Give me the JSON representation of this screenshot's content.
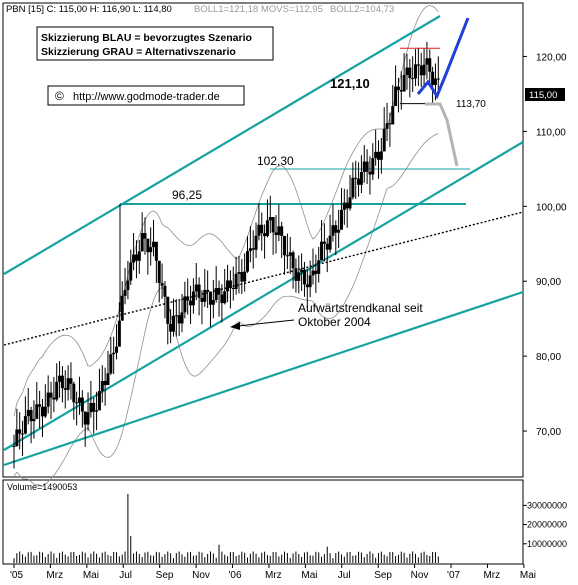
{
  "chart_data": {
    "type": "candlestick",
    "header": {
      "ticker_info": "PBN [15] C: 115,00 H: 116,90 L: 114,80",
      "boll1": "BOLL1=121,18",
      "movs": "MOVS=112,95",
      "boll2": "BOLL2=104,73"
    },
    "legend_blue": "Skizzierung BLAU = bevorzugtes Szenario",
    "legend_grey": "Skizzierung GRAU = Alternativszenario",
    "copyright_symbol": "©",
    "website": "http://www.godmode-trader.de",
    "last_price_label": "115,00",
    "y_axis": {
      "min": 64,
      "max": 127,
      "ticks": [
        70,
        80,
        90,
        100,
        110,
        120
      ],
      "tick_labels": [
        "70,00",
        "80,00",
        "90,00",
        "100,00",
        "110,00",
        "120,00"
      ]
    },
    "x_axis": {
      "labels": [
        "'05",
        "Mrz",
        "Mai",
        "Jul",
        "Sep",
        "Nov",
        "'06",
        "Mrz",
        "Mai",
        "Jul",
        "Sep",
        "Nov",
        "'07",
        "Mrz",
        "Mai"
      ]
    },
    "level_labels": [
      {
        "text": "96,25",
        "value": 96.25
      },
      {
        "text": "102,30",
        "value": 102.3
      },
      {
        "text": "121,10",
        "value": 121.1
      },
      {
        "text": "113,70",
        "value": 113.7
      }
    ],
    "annotation": {
      "line1": "Aufwärtstrendkanal seit",
      "line2": "Oktober 2004"
    },
    "series": [
      {
        "label": "Kurs",
        "approx_closes": [
          68,
          71,
          74,
          76,
          75,
          73,
          74,
          79,
          92,
          95,
          93,
          85,
          86,
          88,
          89,
          88,
          90,
          97,
          97,
          95,
          92,
          89,
          95,
          99,
          102,
          105,
          109,
          114,
          118,
          120,
          115
        ]
      }
    ],
    "volume": {
      "label": "Volume=1490053",
      "ticks": [
        10000000,
        20000000,
        30000000
      ],
      "tick_labels": [
        "10000000",
        "20000000",
        "30000000"
      ]
    },
    "colors": {
      "channel": "#17A2A2",
      "blue_scenario": "#1F3FD6",
      "grey_scenario": "#B4B4B4",
      "red_mark": "#D42020",
      "price": "#000000",
      "bollinger": "#909090"
    }
  }
}
